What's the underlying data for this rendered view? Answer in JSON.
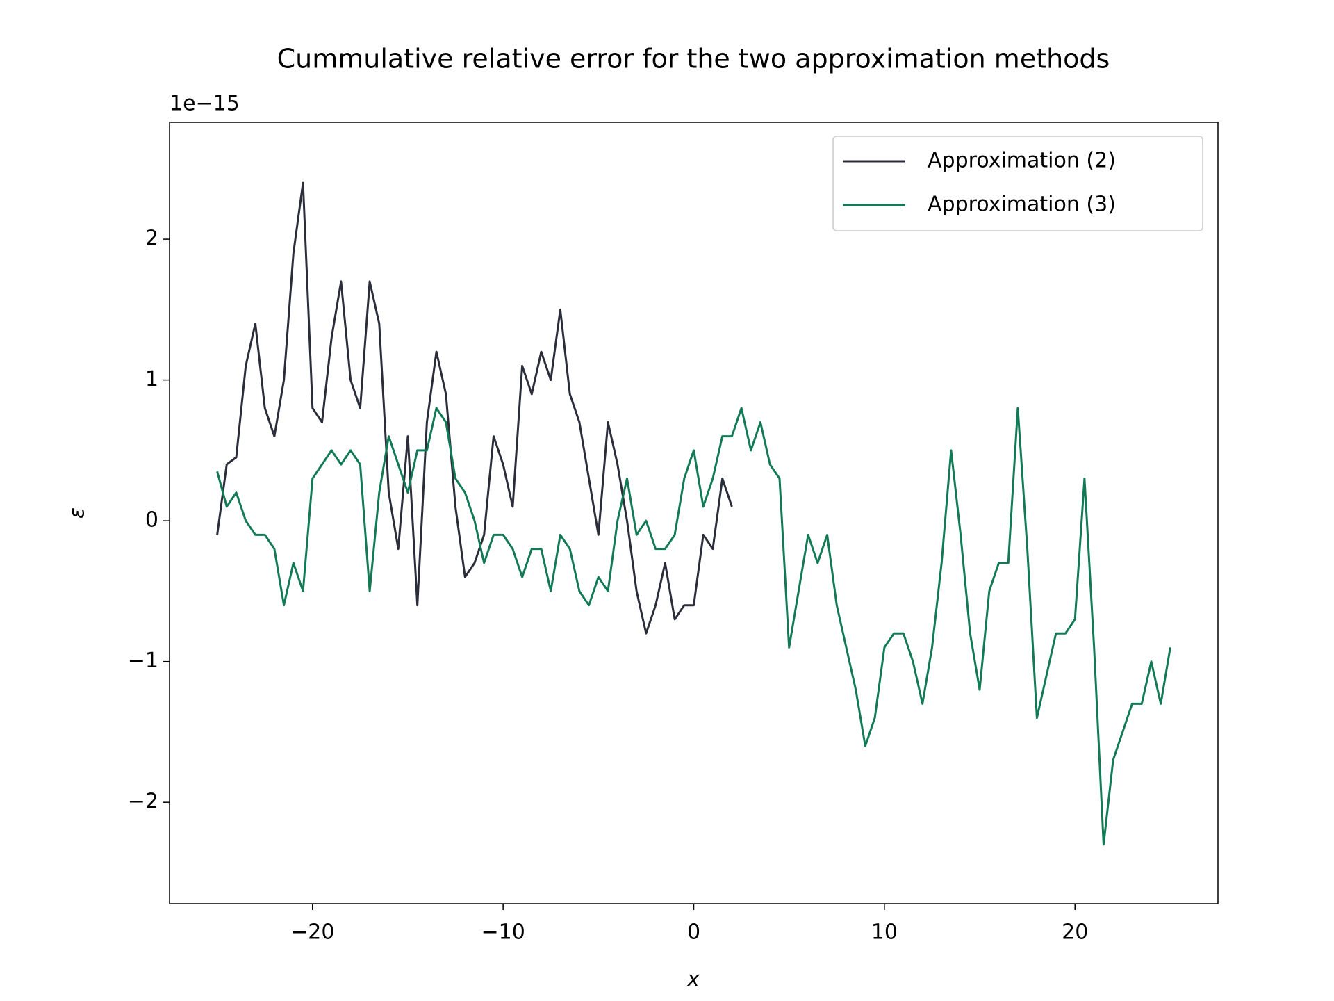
{
  "chart_data": {
    "type": "line",
    "title": "Cummulative relative error for the two approximation methods",
    "x_label": "x",
    "y_label": "ε",
    "y_offset_label": "1e−15",
    "x": [
      -25,
      -24.5,
      -24,
      -23.5,
      -23,
      -22.5,
      -22,
      -21.5,
      -21,
      -20.5,
      -20,
      -19.5,
      -19,
      -18.5,
      -18,
      -17.5,
      -17,
      -16.5,
      -16,
      -15.5,
      -15,
      -14.5,
      -14,
      -13.5,
      -13,
      -12.5,
      -12,
      -11.5,
      -11,
      -10.5,
      -10,
      -9.5,
      -9,
      -8.5,
      -8,
      -7.5,
      -7,
      -6.5,
      -6,
      -5.5,
      -5,
      -4.5,
      -4,
      -3.5,
      -3,
      -2.5,
      -2,
      -1.5,
      -1,
      -0.5,
      0,
      0.5,
      1,
      1.5,
      2,
      2.5,
      3,
      3.5,
      4,
      4.5,
      5,
      5.5,
      6,
      6.5,
      7,
      7.5,
      8,
      8.5,
      9,
      9.5,
      10,
      10.5,
      11,
      11.5,
      12,
      12.5,
      13,
      13.5,
      14,
      14.5,
      15,
      15.5,
      16,
      16.5,
      17,
      17.5,
      18,
      18.5,
      19,
      19.5,
      20,
      20.5,
      21,
      21.5,
      22,
      22.5,
      23,
      23.5,
      24,
      24.5,
      25
    ],
    "series": [
      {
        "name": "Approximation (2)",
        "color": "#2b2d3a",
        "values": [
          -0.1,
          0.4,
          0.45,
          1.1,
          1.4,
          0.8,
          0.6,
          1.0,
          1.9,
          2.4,
          0.8,
          0.7,
          1.3,
          1.7,
          1.0,
          0.8,
          1.7,
          1.4,
          0.2,
          -0.2,
          0.6,
          -0.6,
          0.7,
          1.2,
          0.9,
          0.1,
          -0.4,
          -0.3,
          -0.1,
          0.6,
          0.4,
          0.1,
          1.1,
          0.9,
          1.2,
          1.0,
          1.5,
          0.9,
          0.7,
          0.3,
          -0.1,
          0.7,
          0.4,
          0.0,
          -0.5,
          -0.8,
          -0.6,
          -0.3,
          -0.7,
          -0.6,
          -0.6,
          -0.1,
          -0.2,
          0.3,
          0.1,
          null,
          null,
          null,
          null,
          null,
          null,
          null,
          null,
          null,
          null,
          null,
          null,
          null,
          null,
          null,
          null,
          null,
          null,
          null,
          null,
          null,
          null,
          null,
          null,
          null,
          null,
          null,
          null,
          null,
          null,
          null,
          null,
          null,
          null,
          null,
          null,
          null,
          null,
          null,
          null,
          null,
          null,
          null,
          null,
          null,
          null
        ]
      },
      {
        "name": "Approximation (3)",
        "color": "#127a55",
        "values": [
          0.35,
          0.1,
          0.2,
          0.0,
          -0.1,
          -0.1,
          -0.2,
          -0.6,
          -0.3,
          -0.5,
          0.3,
          0.4,
          0.5,
          0.4,
          0.5,
          0.4,
          -0.5,
          0.2,
          0.6,
          0.4,
          0.2,
          0.5,
          0.5,
          0.8,
          0.7,
          0.3,
          0.2,
          0.0,
          -0.3,
          -0.1,
          -0.1,
          -0.2,
          -0.4,
          -0.2,
          -0.2,
          -0.5,
          -0.1,
          -0.2,
          -0.5,
          -0.6,
          -0.4,
          -0.5,
          0.0,
          0.3,
          -0.1,
          0.0,
          -0.2,
          -0.2,
          -0.1,
          0.3,
          0.5,
          0.1,
          0.3,
          0.6,
          0.6,
          0.8,
          0.5,
          0.7,
          0.4,
          0.3,
          -0.9,
          -0.5,
          -0.1,
          -0.3,
          -0.1,
          -0.6,
          -0.9,
          -1.2,
          -1.6,
          -1.4,
          -0.9,
          -0.8,
          -0.8,
          -1.0,
          -1.3,
          -0.9,
          -0.3,
          0.5,
          -0.1,
          -0.8,
          -1.2,
          -0.5,
          -0.3,
          -0.3,
          0.8,
          -0.2,
          -1.4,
          -1.1,
          -0.8,
          -0.8,
          -0.7,
          0.3,
          -0.9,
          -2.3,
          -1.7,
          -1.5,
          -1.3,
          -1.3,
          -1.0,
          -1.3,
          -0.9
        ]
      }
    ],
    "xlim": [
      -27.5,
      27.5
    ],
    "ylim": [
      -2.72,
      2.83
    ],
    "xticks": [
      {
        "value": -20,
        "label": "−20"
      },
      {
        "value": -10,
        "label": "−10"
      },
      0,
      10,
      20
    ],
    "yticks": [
      {
        "value": -2,
        "label": "−2"
      },
      {
        "value": -1,
        "label": "−1"
      },
      0,
      1,
      2
    ],
    "legend": "upper right"
  }
}
